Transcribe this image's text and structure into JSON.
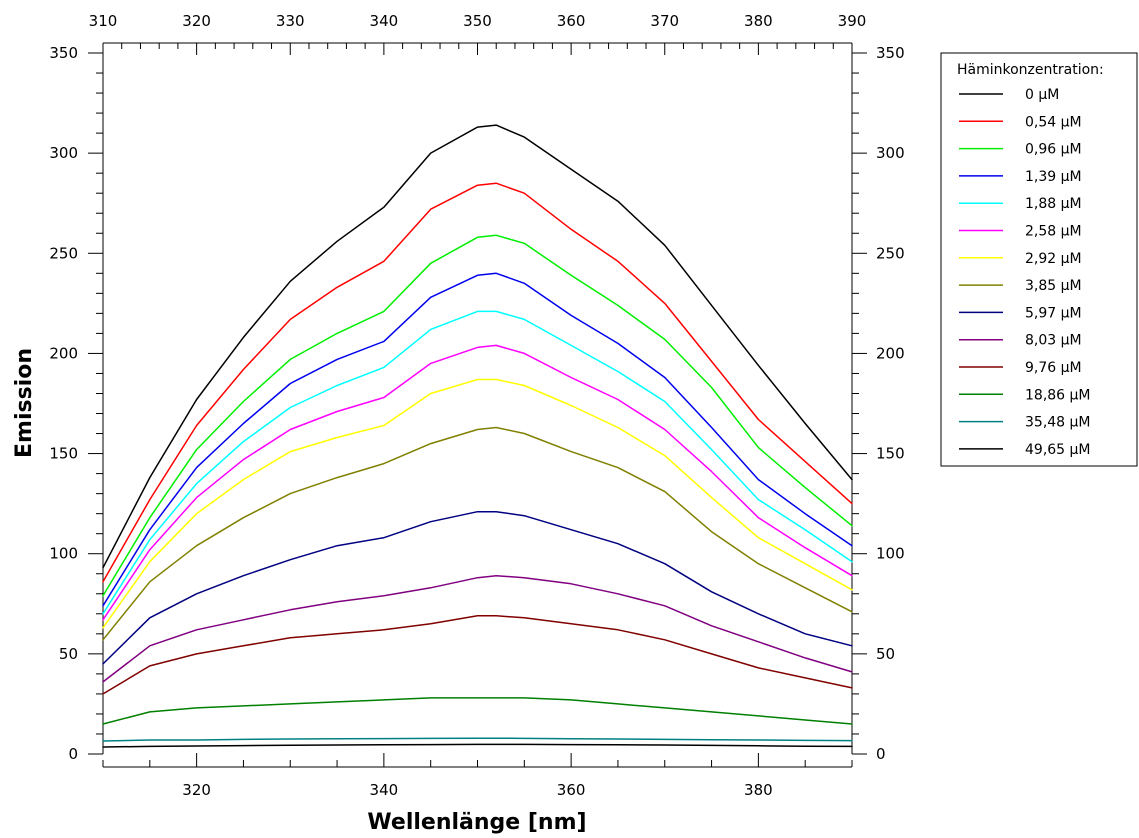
{
  "chart_data": {
    "type": "line",
    "xlabel": "Wellenlänge [nm]",
    "ylabel": "Emission",
    "xlim": [
      310,
      390
    ],
    "ylim": [
      0,
      350
    ],
    "bottom_x_ticks": [
      320,
      340,
      360,
      380
    ],
    "top_x_ticks": [
      310,
      320,
      330,
      340,
      350,
      360,
      370,
      380,
      390
    ],
    "y_ticks": [
      0,
      50,
      100,
      150,
      200,
      250,
      300,
      350
    ],
    "grid": false,
    "legend": {
      "title": "Häminkonzentration:",
      "placement": "right"
    },
    "x": [
      310,
      315,
      320,
      325,
      330,
      335,
      340,
      345,
      350,
      352,
      355,
      360,
      365,
      370,
      375,
      380,
      385,
      390
    ],
    "series": [
      {
        "name": "0 µM",
        "color": "#000000",
        "values": [
          93,
          138,
          177,
          208,
          236,
          256,
          273,
          300,
          313,
          314,
          308,
          292,
          276,
          254,
          224,
          194,
          165,
          137
        ]
      },
      {
        "name": "0,54 µM",
        "color": "#ff0000",
        "values": [
          86,
          127,
          164,
          192,
          217,
          233,
          246,
          272,
          284,
          285,
          280,
          262,
          246,
          225,
          196,
          167,
          146,
          125
        ]
      },
      {
        "name": "0,96 µM",
        "color": "#00ee00",
        "values": [
          79,
          118,
          152,
          176,
          197,
          210,
          221,
          245,
          258,
          259,
          255,
          239,
          224,
          207,
          183,
          153,
          133,
          114
        ]
      },
      {
        "name": "1,39 µM",
        "color": "#0000ee",
        "values": [
          74,
          112,
          143,
          165,
          185,
          197,
          206,
          228,
          239,
          240,
          235,
          219,
          205,
          188,
          163,
          137,
          120,
          104
        ]
      },
      {
        "name": "1,88 µM",
        "color": "#00ffff",
        "values": [
          70,
          107,
          135,
          156,
          173,
          184,
          193,
          212,
          221,
          221,
          217,
          204,
          191,
          176,
          152,
          127,
          112,
          96
        ]
      },
      {
        "name": "2,58 µM",
        "color": "#ff00ff",
        "values": [
          67,
          102,
          128,
          147,
          162,
          171,
          178,
          195,
          203,
          204,
          200,
          188,
          177,
          162,
          141,
          118,
          103,
          89
        ]
      },
      {
        "name": "2,92 µM",
        "color": "#ffff00",
        "values": [
          63,
          96,
          120,
          137,
          151,
          158,
          164,
          180,
          187,
          187,
          184,
          174,
          163,
          149,
          128,
          108,
          95,
          82
        ]
      },
      {
        "name": "3,85 µM",
        "color": "#808000",
        "values": [
          57,
          86,
          104,
          118,
          130,
          138,
          145,
          155,
          162,
          163,
          160,
          151,
          143,
          131,
          111,
          95,
          83,
          71
        ]
      },
      {
        "name": "5,97 µM",
        "color": "#000080",
        "values": [
          45,
          68,
          80,
          89,
          97,
          104,
          108,
          116,
          121,
          121,
          119,
          112,
          105,
          95,
          81,
          70,
          60,
          54
        ]
      },
      {
        "name": "8,03 µM",
        "color": "#800080",
        "values": [
          36,
          54,
          62,
          67,
          72,
          76,
          79,
          83,
          88,
          89,
          88,
          85,
          80,
          74,
          64,
          56,
          48,
          41
        ]
      },
      {
        "name": "9,76 µM",
        "color": "#800000",
        "values": [
          30,
          44,
          50,
          54,
          58,
          60,
          62,
          65,
          69,
          69,
          68,
          65,
          62,
          57,
          50,
          43,
          38,
          33
        ]
      },
      {
        "name": "18,86 µM",
        "color": "#008000",
        "values": [
          15,
          21,
          23,
          24,
          25,
          26,
          27,
          28,
          28,
          28,
          28,
          27,
          25,
          23,
          21,
          19,
          17,
          15
        ]
      },
      {
        "name": "35,48 µM",
        "color": "#008080",
        "values": [
          6.5,
          7,
          7,
          7.3,
          7.5,
          7.6,
          7.7,
          7.8,
          7.9,
          7.9,
          7.8,
          7.6,
          7.5,
          7.3,
          7.1,
          7,
          6.8,
          6.7
        ]
      },
      {
        "name": "49,65 µM",
        "color": "#000000",
        "values": [
          3.5,
          3.8,
          4,
          4.2,
          4.4,
          4.5,
          4.6,
          4.7,
          4.8,
          4.8,
          4.8,
          4.7,
          4.6,
          4.5,
          4.3,
          4.1,
          3.9,
          3.8
        ]
      }
    ]
  }
}
